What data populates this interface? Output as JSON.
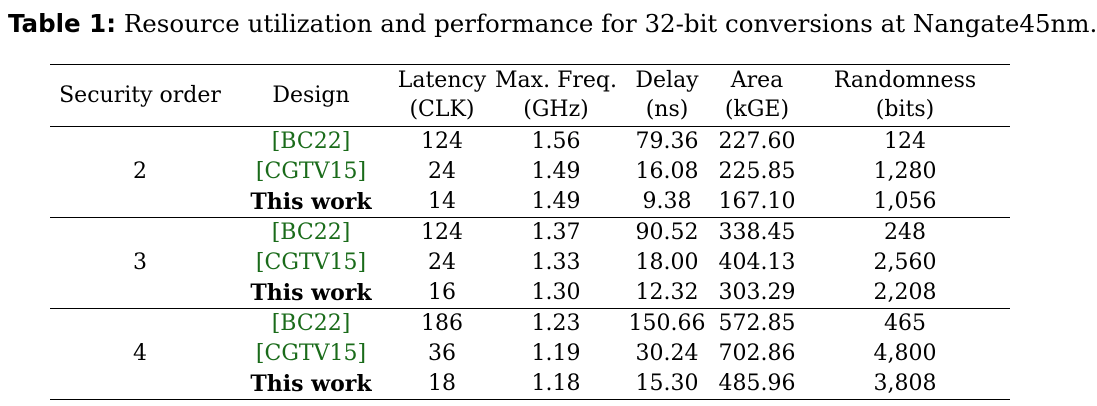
{
  "caption": {
    "label": "Table 1:",
    "text": "Resource utilization and performance for 32-bit conversions at Nangate45nm."
  },
  "headers": {
    "security_order": "Security order",
    "design": "Design",
    "latency": "Latency",
    "latency_unit": "(CLK)",
    "freq": "Max. Freq.",
    "freq_unit": "(GHz)",
    "delay": "Delay",
    "delay_unit": "(ns)",
    "area": "Area",
    "area_unit": "(kGE)",
    "randomness": "Randomness",
    "randomness_unit": "(bits)"
  },
  "groups": [
    {
      "order": "2",
      "rows": [
        {
          "design": "[BC22]",
          "latency": "124",
          "freq": "1.56",
          "delay": "79.36",
          "area": "227.60",
          "randomness": "124"
        },
        {
          "design": "[CGTV15]",
          "latency": "24",
          "freq": "1.49",
          "delay": "16.08",
          "area": "225.85",
          "randomness": "1,280"
        },
        {
          "design": "This work",
          "latency": "14",
          "freq": "1.49",
          "delay": "9.38",
          "area": "167.10",
          "randomness": "1,056"
        }
      ]
    },
    {
      "order": "3",
      "rows": [
        {
          "design": "[BC22]",
          "latency": "124",
          "freq": "1.37",
          "delay": "90.52",
          "area": "338.45",
          "randomness": "248"
        },
        {
          "design": "[CGTV15]",
          "latency": "24",
          "freq": "1.33",
          "delay": "18.00",
          "area": "404.13",
          "randomness": "2,560"
        },
        {
          "design": "This work",
          "latency": "16",
          "freq": "1.30",
          "delay": "12.32",
          "area": "303.29",
          "randomness": "2,208"
        }
      ]
    },
    {
      "order": "4",
      "rows": [
        {
          "design": "[BC22]",
          "latency": "186",
          "freq": "1.23",
          "delay": "150.66",
          "area": "572.85",
          "randomness": "465"
        },
        {
          "design": "[CGTV15]",
          "latency": "36",
          "freq": "1.19",
          "delay": "30.24",
          "area": "702.86",
          "randomness": "4,800"
        },
        {
          "design": "This work",
          "latency": "18",
          "freq": "1.18",
          "delay": "15.30",
          "area": "485.96",
          "randomness": "3,808"
        }
      ]
    }
  ],
  "colors": {
    "citation": "#1a6b1a",
    "text": "#000000",
    "background": "#ffffff"
  }
}
